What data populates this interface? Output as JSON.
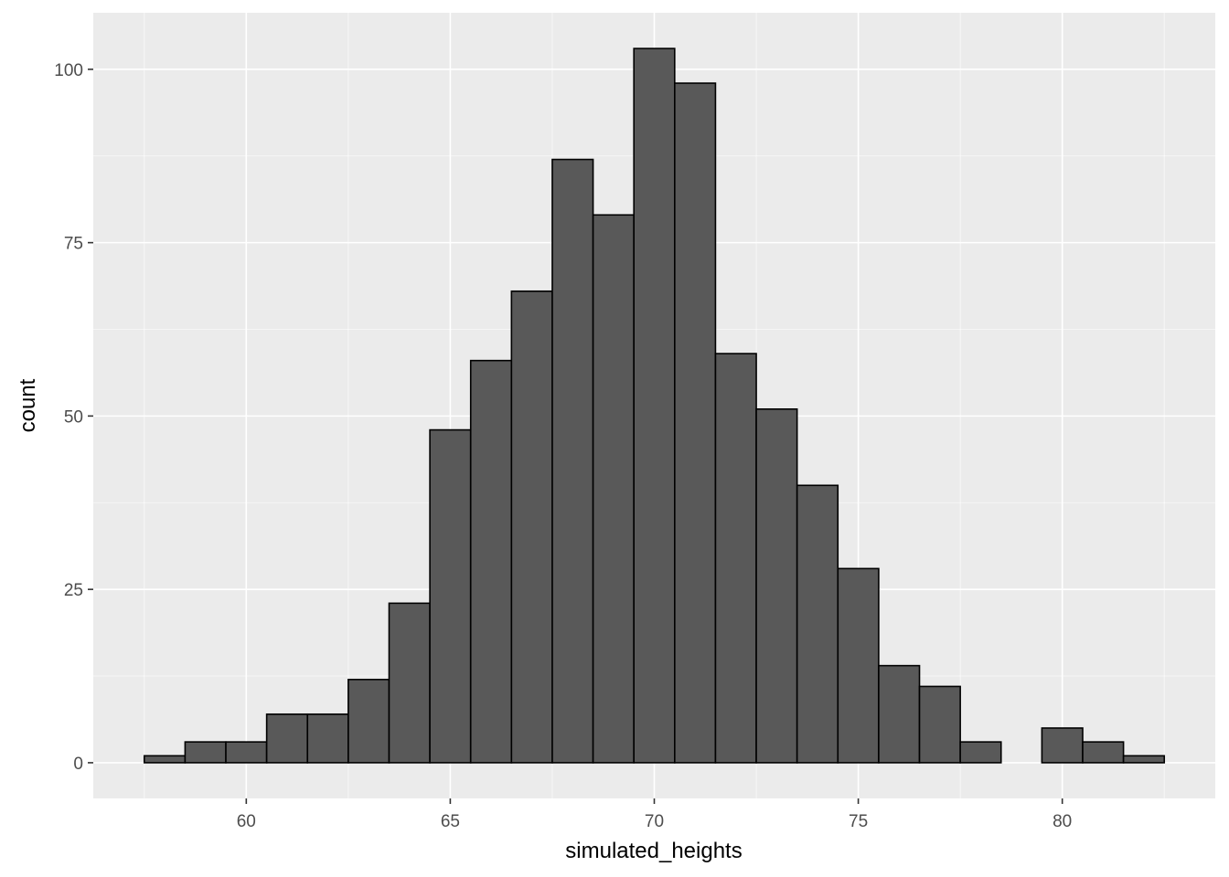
{
  "chart_data": {
    "type": "bar",
    "subtype": "histogram",
    "xlabel": "simulated_heights",
    "ylabel": "count",
    "xlim": [
      56.25,
      83.75
    ],
    "ylim": [
      -5.15,
      108.15
    ],
    "x_ticks": [
      60,
      65,
      70,
      75,
      80
    ],
    "y_ticks": [
      0,
      25,
      50,
      75,
      100
    ],
    "grid": true,
    "bin_width": 1,
    "bins": [
      {
        "x0": 57.5,
        "x1": 58.5,
        "count": 1
      },
      {
        "x0": 58.5,
        "x1": 59.5,
        "count": 3
      },
      {
        "x0": 59.5,
        "x1": 60.5,
        "count": 3
      },
      {
        "x0": 60.5,
        "x1": 61.5,
        "count": 7
      },
      {
        "x0": 61.5,
        "x1": 62.5,
        "count": 7
      },
      {
        "x0": 62.5,
        "x1": 63.5,
        "count": 12
      },
      {
        "x0": 63.5,
        "x1": 64.5,
        "count": 23
      },
      {
        "x0": 64.5,
        "x1": 65.5,
        "count": 48
      },
      {
        "x0": 65.5,
        "x1": 66.5,
        "count": 58
      },
      {
        "x0": 66.5,
        "x1": 67.5,
        "count": 68
      },
      {
        "x0": 67.5,
        "x1": 68.5,
        "count": 87
      },
      {
        "x0": 68.5,
        "x1": 69.5,
        "count": 79
      },
      {
        "x0": 69.5,
        "x1": 70.5,
        "count": 103
      },
      {
        "x0": 70.5,
        "x1": 71.5,
        "count": 98
      },
      {
        "x0": 71.5,
        "x1": 72.5,
        "count": 59
      },
      {
        "x0": 72.5,
        "x1": 73.5,
        "count": 51
      },
      {
        "x0": 73.5,
        "x1": 74.5,
        "count": 40
      },
      {
        "x0": 74.5,
        "x1": 75.5,
        "count": 28
      },
      {
        "x0": 75.5,
        "x1": 76.5,
        "count": 14
      },
      {
        "x0": 76.5,
        "x1": 77.5,
        "count": 11
      },
      {
        "x0": 77.5,
        "x1": 78.5,
        "count": 3
      },
      {
        "x0": 78.5,
        "x1": 79.5,
        "count": 0
      },
      {
        "x0": 79.5,
        "x1": 80.5,
        "count": 5
      },
      {
        "x0": 80.5,
        "x1": 81.5,
        "count": 3
      },
      {
        "x0": 81.5,
        "x1": 82.5,
        "count": 1
      }
    ],
    "colors": {
      "panel_background": "#ebebeb",
      "grid_major": "#ffffff",
      "bar_fill": "#595959",
      "bar_outline": "#000000"
    }
  }
}
